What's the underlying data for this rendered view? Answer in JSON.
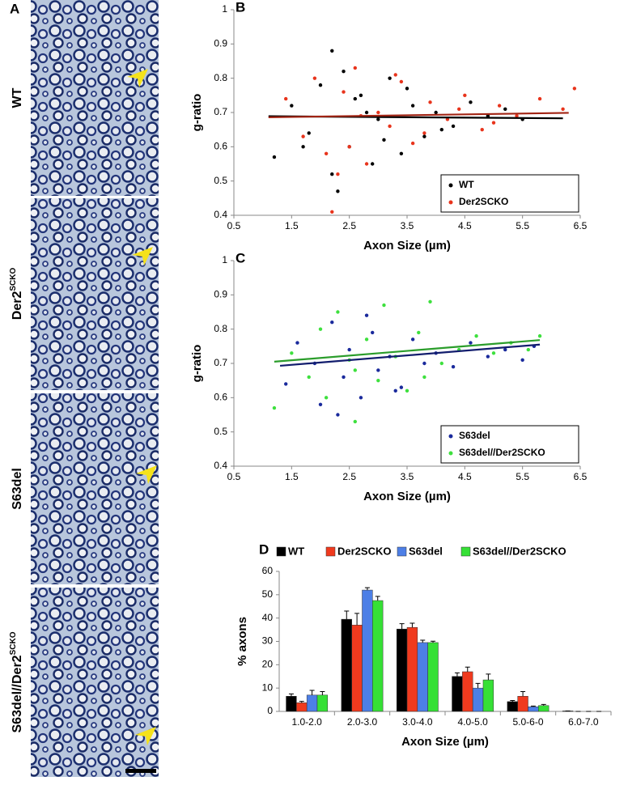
{
  "figure": {
    "panel_label": "A",
    "micrographs": [
      {
        "label": "WT"
      },
      {
        "label": "Der2",
        "superscript": "SCKO"
      },
      {
        "label": "S63del"
      },
      {
        "label": "S63del//Der2",
        "superscript": "SCKO"
      }
    ]
  },
  "chart_data": [
    {
      "type": "scatter",
      "panel_label": "B",
      "x_label": "Axon Size (µm)",
      "y_label": "g-ratio",
      "xlim": [
        0.5,
        6.5
      ],
      "xticks": [
        0.5,
        1.5,
        2.5,
        3.5,
        4.5,
        5.5,
        6.5
      ],
      "ylim": [
        0.4,
        1
      ],
      "yticks": [
        0.4,
        0.5,
        0.6,
        0.7,
        0.8,
        0.9,
        1
      ],
      "legend": "lower right",
      "series": [
        {
          "name": "WT",
          "color": "#000000",
          "x": [
            1.2,
            1.5,
            1.8,
            2.0,
            2.2,
            2.3,
            2.5,
            2.7,
            2.9,
            3.0,
            3.2,
            3.4,
            3.6,
            3.8,
            4.0,
            4.3,
            4.6,
            4.9,
            5.2,
            5.5,
            2.2,
            2.4,
            3.1,
            1.7,
            2.8,
            3.5,
            4.1,
            2.6
          ],
          "values": [
            0.57,
            0.72,
            0.64,
            0.78,
            0.88,
            0.47,
            0.6,
            0.75,
            0.55,
            0.68,
            0.8,
            0.58,
            0.72,
            0.63,
            0.7,
            0.66,
            0.73,
            0.69,
            0.71,
            0.68,
            0.52,
            0.82,
            0.62,
            0.6,
            0.7,
            0.77,
            0.65,
            0.74
          ],
          "trendline": {
            "x": [
              1.1,
              6.2
            ],
            "y": [
              0.689,
              0.683
            ]
          }
        },
        {
          "name": "Der2SCKO",
          "color": "#e8341c",
          "x": [
            1.4,
            1.7,
            1.9,
            2.1,
            2.2,
            2.4,
            2.6,
            2.8,
            3.0,
            3.2,
            3.4,
            3.6,
            3.9,
            4.2,
            4.5,
            4.8,
            5.1,
            5.4,
            5.8,
            6.2,
            6.4,
            2.3,
            2.7,
            3.3,
            2.5,
            3.8,
            4.4,
            5.0
          ],
          "values": [
            0.74,
            0.63,
            0.8,
            0.58,
            0.41,
            0.76,
            0.83,
            0.55,
            0.7,
            0.66,
            0.79,
            0.61,
            0.73,
            0.68,
            0.75,
            0.65,
            0.72,
            0.69,
            0.74,
            0.71,
            0.77,
            0.52,
            0.69,
            0.81,
            0.6,
            0.64,
            0.71,
            0.67
          ],
          "trendline": {
            "x": [
              1.1,
              6.3
            ],
            "y": [
              0.686,
              0.699
            ]
          }
        }
      ]
    },
    {
      "type": "scatter",
      "panel_label": "C",
      "x_label": "Axon Size (µm)",
      "y_label": "g-ratio",
      "xlim": [
        0.5,
        6.5
      ],
      "xticks": [
        0.5,
        1.5,
        2.5,
        3.5,
        4.5,
        5.5,
        6.5
      ],
      "ylim": [
        0.4,
        1
      ],
      "yticks": [
        0.4,
        0.5,
        0.6,
        0.7,
        0.8,
        0.9,
        1
      ],
      "legend": "lower right",
      "series": [
        {
          "name": "S63del",
          "color": "#1a2a9c",
          "x": [
            1.4,
            1.6,
            1.9,
            2.0,
            2.2,
            2.4,
            2.5,
            2.7,
            2.9,
            3.0,
            3.2,
            3.4,
            3.6,
            3.8,
            4.0,
            4.3,
            4.6,
            4.9,
            5.2,
            5.5,
            5.7,
            2.3,
            2.8,
            3.3
          ],
          "values": [
            0.64,
            0.76,
            0.7,
            0.58,
            0.82,
            0.66,
            0.74,
            0.6,
            0.79,
            0.68,
            0.72,
            0.63,
            0.77,
            0.7,
            0.73,
            0.69,
            0.76,
            0.72,
            0.74,
            0.71,
            0.75,
            0.55,
            0.84,
            0.62
          ],
          "trendline": {
            "x": [
              1.3,
              5.8
            ],
            "y": [
              0.693,
              0.755
            ]
          }
        },
        {
          "name": "S63del//Der2SCKO",
          "color": "#3ee03e",
          "x": [
            1.2,
            1.5,
            1.8,
            2.0,
            2.1,
            2.3,
            2.5,
            2.6,
            2.8,
            3.0,
            3.1,
            3.3,
            3.5,
            3.7,
            3.9,
            4.1,
            4.4,
            4.7,
            5.0,
            5.3,
            5.6,
            5.8,
            2.6,
            3.8
          ],
          "values": [
            0.57,
            0.73,
            0.66,
            0.8,
            0.6,
            0.85,
            0.71,
            0.53,
            0.77,
            0.65,
            0.87,
            0.72,
            0.62,
            0.79,
            0.88,
            0.7,
            0.74,
            0.78,
            0.73,
            0.76,
            0.74,
            0.78,
            0.68,
            0.66
          ],
          "trendline": {
            "x": [
              1.2,
              5.8
            ],
            "y": [
              0.705,
              0.768
            ]
          }
        }
      ]
    },
    {
      "type": "bar",
      "panel_label": "D",
      "x_label": "Axon Size (µm)",
      "y_label": "% axons",
      "categories": [
        "1.0-2.0",
        "2.0-3.0",
        "3.0-4.0",
        "4.0-5.0",
        "5.0-6-0",
        "6.0-7.0"
      ],
      "ylim": [
        0,
        60
      ],
      "yticks": [
        0,
        10,
        20,
        30,
        40,
        50,
        60
      ],
      "legend": "top",
      "series": [
        {
          "name": "WT",
          "color": "#000000",
          "values": [
            6.5,
            39.5,
            35.3,
            15,
            4.2,
            0.2
          ],
          "errors": [
            1,
            3.5,
            2.3,
            1.5,
            0.5,
            0
          ]
        },
        {
          "name": "Der2SCKO",
          "color": "#f03a1e",
          "values": [
            3.7,
            37,
            36,
            17,
            6.5,
            0
          ],
          "errors": [
            0.6,
            5,
            1.8,
            2,
            2,
            0
          ]
        },
        {
          "name": "S63del",
          "color": "#4d7fe6",
          "values": [
            7,
            52,
            29.5,
            10,
            2,
            0
          ],
          "errors": [
            2,
            1,
            1,
            2,
            0.3,
            0
          ]
        },
        {
          "name": "S63del//Der2SCKO",
          "color": "#36e036",
          "values": [
            7,
            47.5,
            29.5,
            13.5,
            2.5,
            0
          ],
          "errors": [
            1.5,
            1.8,
            0.6,
            2.5,
            0.5,
            0
          ]
        }
      ]
    }
  ]
}
